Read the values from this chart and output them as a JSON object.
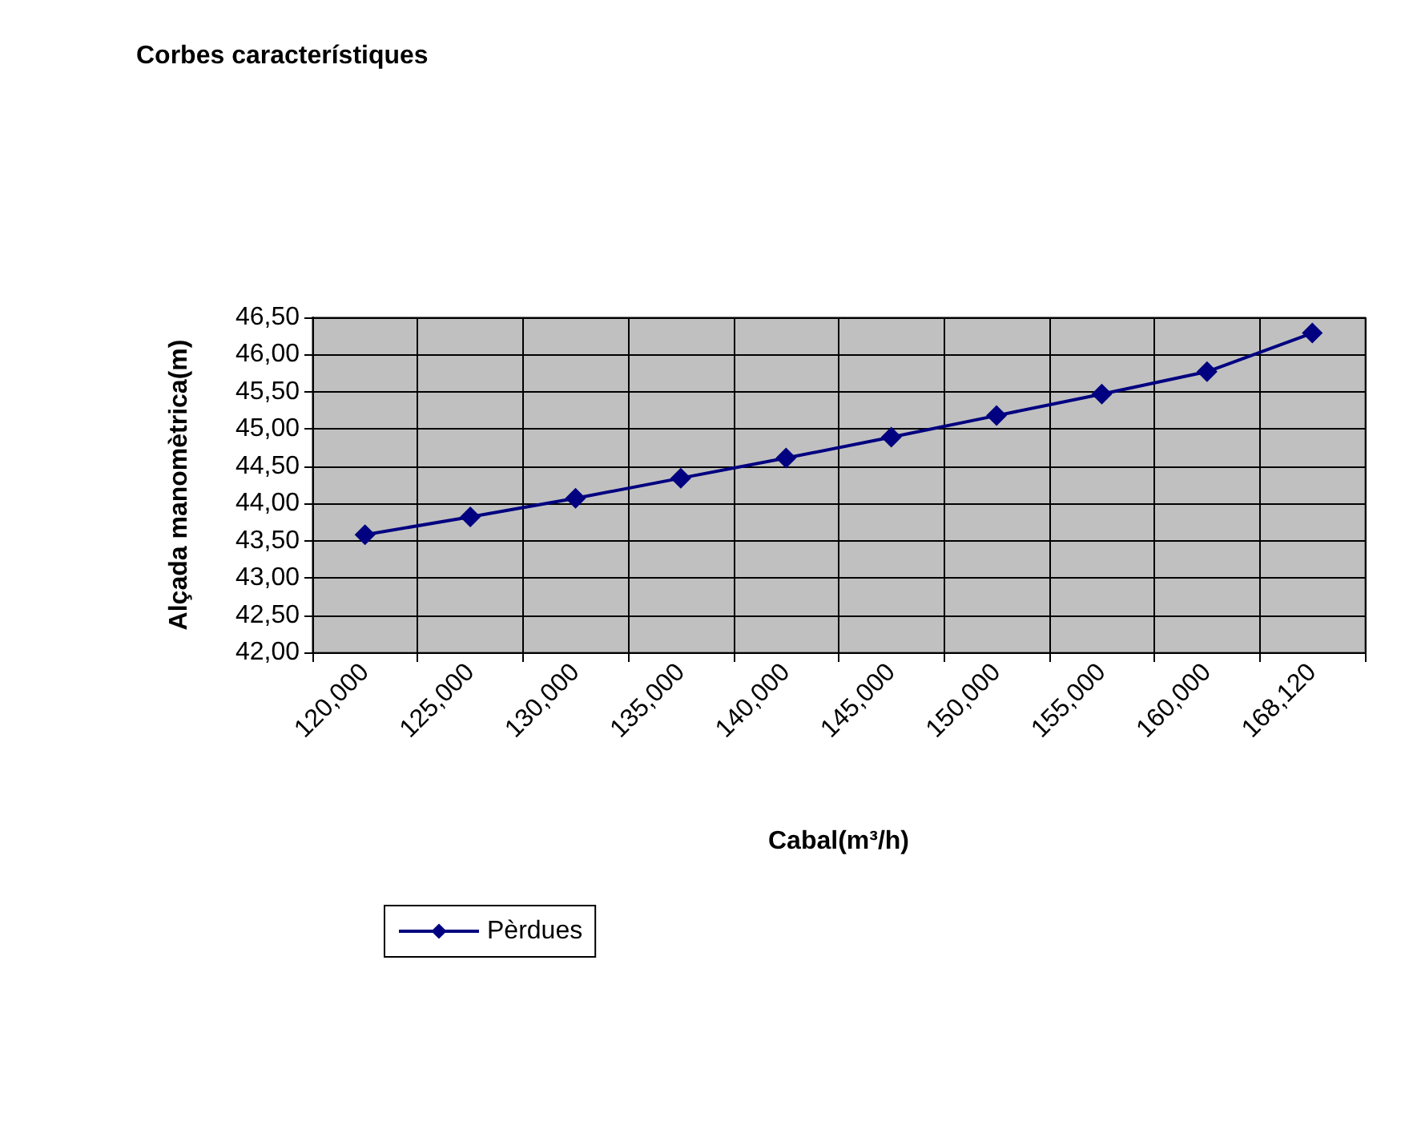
{
  "chart_data": {
    "type": "line",
    "title": "Corbes característiques",
    "xlabel": "Cabal(m³/h)",
    "ylabel": "Alçada manomètrica(m)",
    "categories": [
      "120,000",
      "125,000",
      "130,000",
      "135,000",
      "140,000",
      "145,000",
      "150,000",
      "155,000",
      "160,000",
      "168,120"
    ],
    "series": [
      {
        "name": "Pèrdues",
        "color": "#000080",
        "values": [
          43.58,
          43.82,
          44.07,
          44.34,
          44.61,
          44.89,
          45.18,
          45.47,
          45.77,
          46.29
        ]
      }
    ],
    "ylim": [
      42,
      46.5
    ],
    "yticks": [
      {
        "value": 42,
        "label": "42,00"
      },
      {
        "value": 42.5,
        "label": "42,50"
      },
      {
        "value": 43,
        "label": "43,00"
      },
      {
        "value": 43.5,
        "label": "43,50"
      },
      {
        "value": 44,
        "label": "44,00"
      },
      {
        "value": 44.5,
        "label": "44,50"
      },
      {
        "value": 45,
        "label": "45,00"
      },
      {
        "value": 45.5,
        "label": "45,50"
      },
      {
        "value": 46,
        "label": "46,00"
      },
      {
        "value": 46.5,
        "label": "46,50"
      }
    ],
    "grid": true,
    "legend": "bottom",
    "marker": "diamond",
    "line_style": "solid"
  }
}
